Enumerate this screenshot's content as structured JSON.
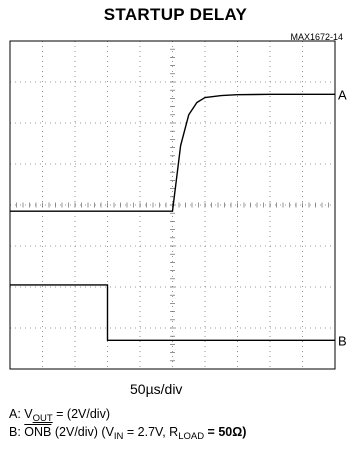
{
  "chart_data": {
    "type": "line",
    "title": "STARTUP DELAY",
    "figure_id": "MAX1672-14",
    "x_scale_label": "50µs/div",
    "grid": true,
    "x_divisions": 10,
    "y_divisions": 8,
    "time_per_div_us": 50,
    "series": [
      {
        "name": "A",
        "volts_per_div": 2,
        "points": [
          [
            0,
            0
          ],
          [
            5.0,
            0
          ],
          [
            5.25,
            1.6
          ],
          [
            5.5,
            2.35
          ],
          [
            5.75,
            2.65
          ],
          [
            6.0,
            2.77
          ],
          [
            6.5,
            2.82
          ],
          [
            7.0,
            2.84
          ],
          [
            8.0,
            2.85
          ],
          [
            10.0,
            2.85
          ]
        ]
      },
      {
        "name": "B",
        "volts_per_div": 2,
        "points": [
          [
            0,
            1.35
          ],
          [
            3.0,
            1.35
          ],
          [
            3.0,
            0
          ],
          [
            10.0,
            0
          ]
        ]
      }
    ],
    "caption_a": {
      "prefix": "A: V",
      "sub": "OUT",
      "suffix": " = (2V/div)"
    },
    "caption_b": {
      "prefix": "B: ",
      "signal": "ONB",
      "mid": " (2V/div) (V",
      "sub1": "IN",
      "mid2": " = 2.7V, R",
      "sub2": "LOAD",
      "suffix": " = 50Ω)"
    }
  }
}
